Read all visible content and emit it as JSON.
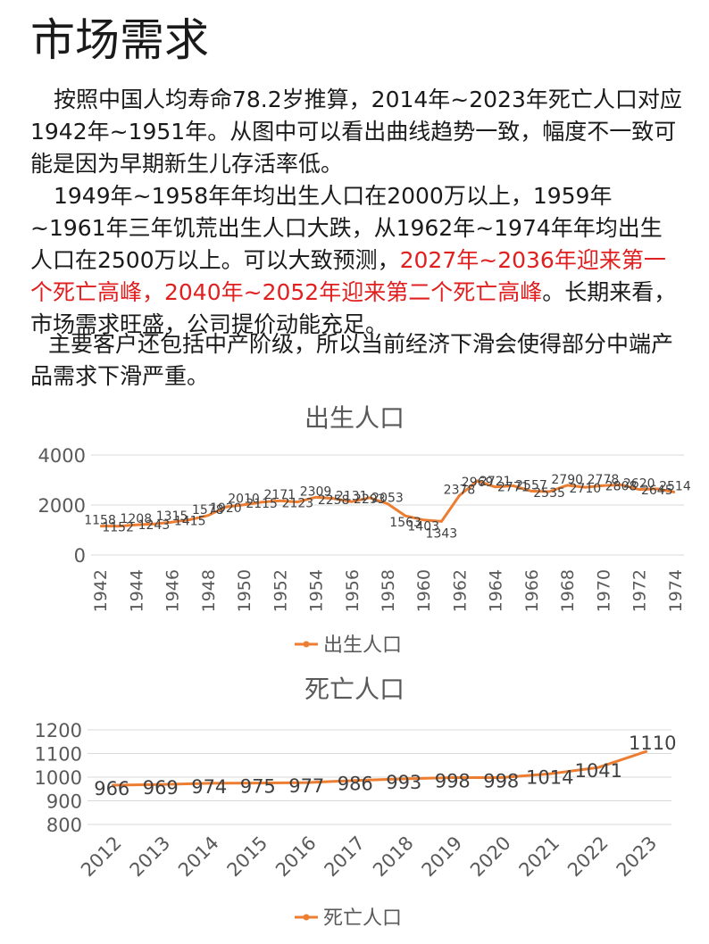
{
  "page": {
    "title": "市场需求",
    "p1": "按照中国人均寿命78.2岁推算，2014年~2023年死亡人口对应1942年~1951年。从图中可以看出曲线趋势一致，幅度不一致可能是因为早期新生儿存活率低。",
    "p2a": "1949年~1958年年均出生人口在2000万以上，1959年~1961年三年饥荒出生人口大跌，从1962年~1974年年均出生人口在2500万以上。可以大致预测，",
    "p2b": "2027年~2036年迎来第一个死亡高峰，2040年~2052年迎来第二个死亡高峰",
    "p2c": "。长期来看，市场需求旺盛，公司提价动能充足。",
    "p3": "主要客户还包括中产阶级，所以当前经济下滑会使得部分中端产品需求下滑严重。"
  },
  "colors": {
    "line": "#ED7D31",
    "grid": "#D9D9D9",
    "accent_red": "#E02020"
  },
  "chart_data": [
    {
      "type": "line",
      "title": "出生人口",
      "legend": "出生人口",
      "legend_position": "bottom",
      "ylim": [
        0,
        4000
      ],
      "yticks": [
        0,
        2000,
        4000
      ],
      "x": [
        1942,
        1943,
        1944,
        1945,
        1946,
        1947,
        1948,
        1949,
        1950,
        1951,
        1952,
        1953,
        1954,
        1955,
        1956,
        1957,
        1958,
        1959,
        1960,
        1961,
        1962,
        1963,
        1964,
        1965,
        1966,
        1967,
        1968,
        1969,
        1970,
        1971,
        1972,
        1973,
        1974
      ],
      "xtick_labels": [
        "1942",
        "1944",
        "1946",
        "1948",
        "1950",
        "1952",
        "1954",
        "1956",
        "1958",
        "1960",
        "1962",
        "1964",
        "1966",
        "1968",
        "1970",
        "1972",
        "1974"
      ],
      "values": [
        1158,
        1152,
        1208,
        1243,
        1315,
        1415,
        1578,
        1920,
        2010,
        2115,
        2171,
        2123,
        2309,
        2258,
        2131,
        2293,
        2053,
        1563,
        1403,
        1343,
        2378,
        2969,
        2721,
        2771,
        2557,
        2535,
        2790,
        2710,
        2778,
        2808,
        2620,
        2645,
        2514
      ],
      "labels": [
        "1158",
        "1152",
        "1208",
        "1243",
        "1315",
        "1415",
        "1578",
        "1920",
        "2010",
        "2115",
        "2171",
        "2123",
        "2309",
        "2258",
        "2131",
        "2293",
        "2053",
        "1563",
        "1403",
        "1343",
        "2378",
        "2969",
        "2721",
        "2771",
        "2557",
        "2535",
        "2790",
        "2710",
        "2778",
        "2808",
        "2620",
        "2645",
        "2514"
      ]
    },
    {
      "type": "line",
      "title": "死亡人口",
      "legend": "死亡人口",
      "legend_position": "bottom",
      "ylim": [
        800,
        1200
      ],
      "yticks": [
        800,
        900,
        1000,
        1100,
        1200
      ],
      "x": [
        2012,
        2013,
        2014,
        2015,
        2016,
        2017,
        2018,
        2019,
        2020,
        2021,
        2022,
        2023
      ],
      "xtick_labels": [
        "2012",
        "2013",
        "2014",
        "2015",
        "2016",
        "2017",
        "2018",
        "2019",
        "2020",
        "2021",
        "2022",
        "2023"
      ],
      "values": [
        966,
        969,
        974,
        975,
        977,
        986,
        993,
        998,
        998,
        1014,
        1041,
        1110
      ],
      "labels": [
        "966",
        "969",
        "974",
        "975",
        "977",
        "986",
        "993",
        "998",
        "998",
        "1014",
        "1041",
        "1110"
      ]
    }
  ]
}
